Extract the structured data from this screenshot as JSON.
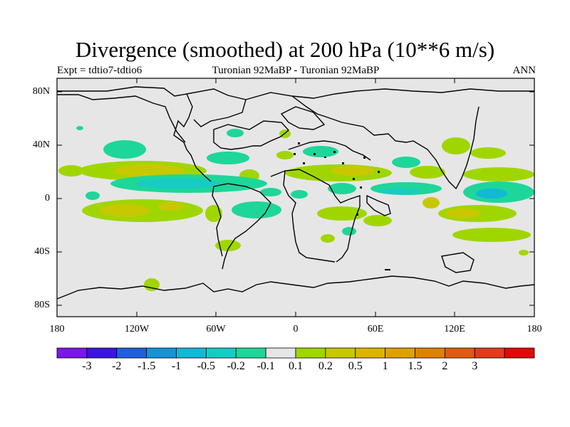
{
  "title": "Divergence (smoothed) at 200 hPa (10**6 m/s)",
  "subtitle_left": "Expt = tdtio7-tdtio6",
  "subtitle_center": "Turonian  92MaBP - Turonian  92MaBP",
  "subtitle_right": "ANN",
  "lat_labels": [
    "80N",
    "40N",
    "0",
    "40S",
    "80S"
  ],
  "lon_labels": [
    "180",
    "120W",
    "60W",
    "0",
    "60E",
    "120E",
    "180"
  ],
  "colorbar": {
    "colors": [
      "#7a17e6",
      "#3c14e0",
      "#1f5fdc",
      "#1493d6",
      "#13b8d4",
      "#17ccc4",
      "#1ed69a",
      "#e6e6e6",
      "#a0d600",
      "#c8c800",
      "#dcb400",
      "#e0a000",
      "#e08000",
      "#e05a10",
      "#e03c1c",
      "#e00a0a"
    ],
    "labels": [
      "-3",
      "-2",
      "-1.5",
      "-1",
      "-0.5",
      "-0.2",
      "-0.1",
      "0.1",
      "0.2",
      "0.5",
      "1",
      "1.5",
      "2",
      "3"
    ]
  },
  "field_colors": {
    "neutral": "#e6e6e6",
    "pos_weak": "#a0d600",
    "pos_med": "#c8c800",
    "pos_strong": "#dcb400",
    "neg_weak": "#1ed69a",
    "neg_med": "#17ccc4",
    "neg_strong": "#13b8d4"
  }
}
